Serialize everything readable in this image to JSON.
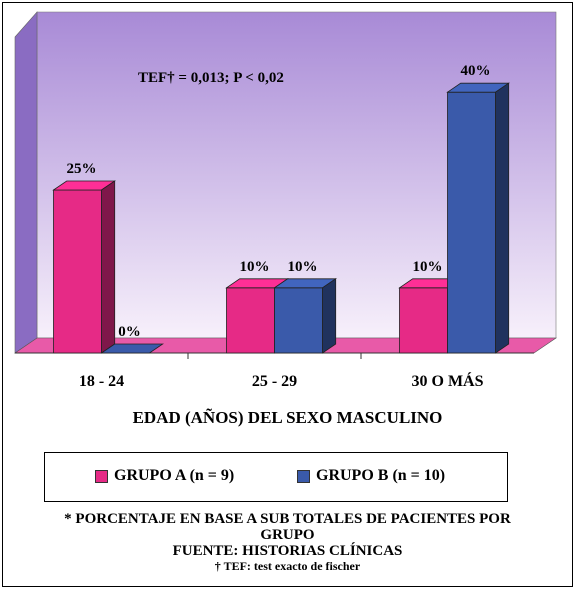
{
  "chart_data": {
    "type": "bar",
    "categories": [
      "18 - 24",
      "25 - 29",
      "30 O MÁS"
    ],
    "series": [
      {
        "name": "GRUPO A (n = 9)",
        "values": [
          25,
          10,
          10
        ],
        "labels": [
          "25%",
          "10%",
          "10%"
        ],
        "color": "#e62a86"
      },
      {
        "name": "GRUPO B (n = 10)",
        "values": [
          0,
          10,
          40
        ],
        "labels": [
          "0%",
          "10%",
          "40%"
        ],
        "color": "#3a5aaa"
      }
    ],
    "xlabel": "EDAD (AÑOS) DEL SEXO MASCULINO",
    "ylabel": "",
    "ylim": [
      0,
      50
    ],
    "annotation": "TEF† = 0,013; P < 0,02",
    "legend_position": "bottom",
    "grid": false,
    "three_d": true,
    "wall_color_top": "#a88ad6",
    "wall_color_bottom": "#f7f0fb",
    "floor_color": "#e85aa8"
  },
  "notes": {
    "line1": "* PORCENTAJE EN BASE A SUB TOTALES DE PACIENTES POR GRUPO",
    "line2": "FUENTE: HISTORIAS CLÍNICAS",
    "footnote": "† TEF: test exacto de fischer"
  }
}
